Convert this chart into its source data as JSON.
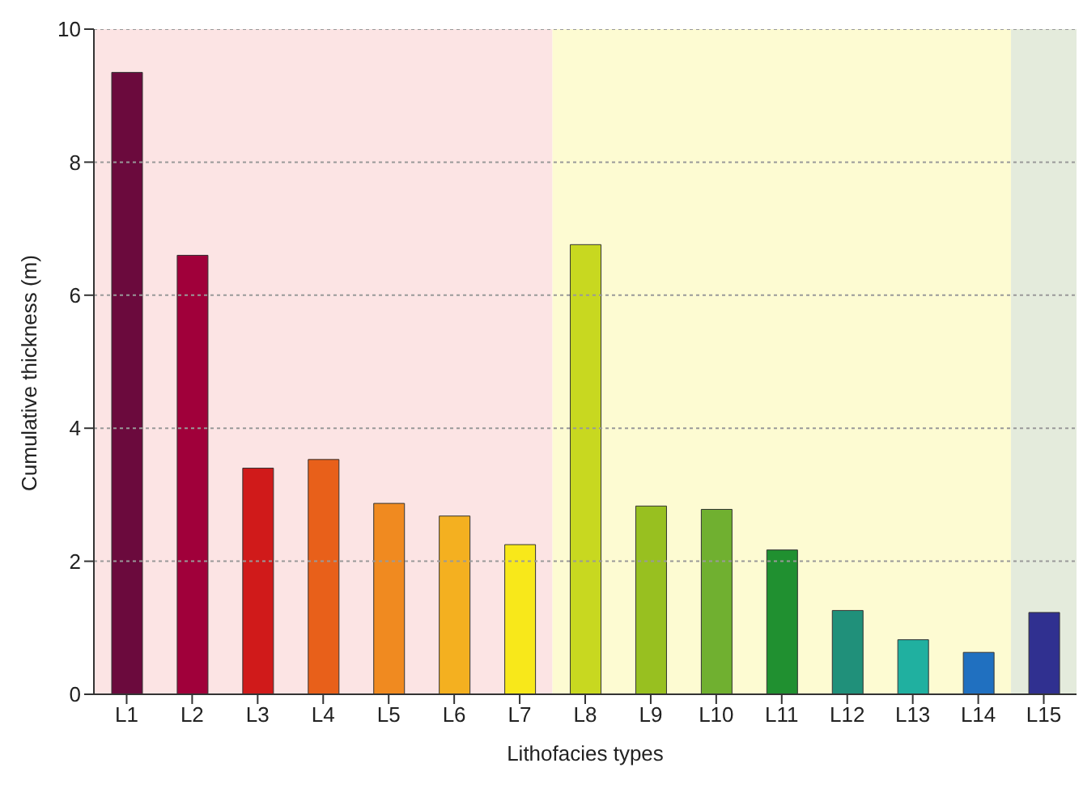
{
  "chart_data": {
    "type": "bar",
    "xlabel": "Lithofacies types",
    "ylabel": "Cumulative thickness (m)",
    "categories": [
      "L1",
      "L2",
      "L3",
      "L4",
      "L5",
      "L6",
      "L7",
      "L8",
      "L9",
      "L10",
      "L11",
      "L12",
      "L13",
      "L14",
      "L15"
    ],
    "values": [
      9.35,
      6.6,
      3.4,
      3.53,
      2.87,
      2.68,
      2.25,
      6.76,
      2.83,
      2.78,
      2.17,
      1.26,
      0.82,
      0.63,
      1.23
    ],
    "colors": [
      "#6b0a3d",
      "#a0003a",
      "#d01a1a",
      "#e8601a",
      "#f08a20",
      "#f4b020",
      "#f8e81a",
      "#c8d820",
      "#98c020",
      "#70b030",
      "#209030",
      "#20907a",
      "#20b0a0",
      "#2070c0",
      "#303090"
    ],
    "ylim": [
      0,
      10
    ],
    "yticks": [
      0,
      2,
      4,
      6,
      8,
      10
    ],
    "grid": "y",
    "bands": [
      {
        "axis": "x",
        "from": "L1",
        "to": "L7",
        "color": "#fce4e4"
      },
      {
        "axis": "x",
        "from": "L8",
        "to": "L14",
        "color": "#fdfbd2"
      },
      {
        "axis": "x",
        "from": "L15",
        "to": "L15",
        "color": "#e4ebdc"
      }
    ]
  }
}
